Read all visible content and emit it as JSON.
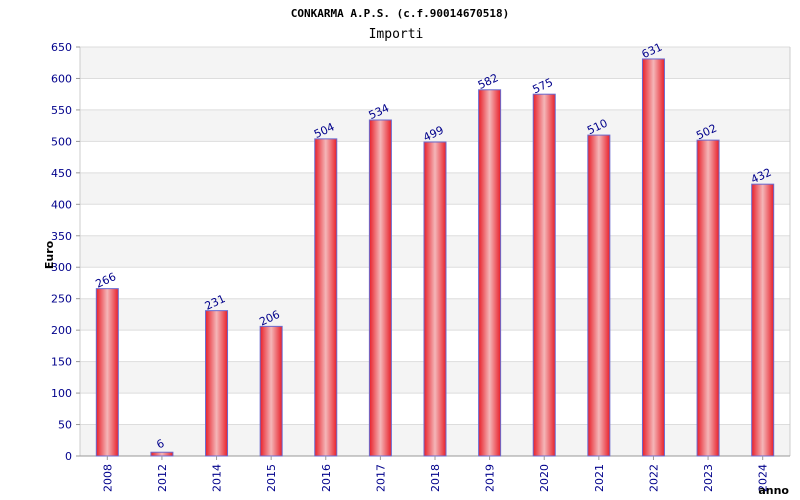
{
  "chart_data": {
    "type": "bar",
    "title": "CONKARMA A.P.S. (c.f.90014670518)",
    "subtitle": "Importi",
    "xlabel": "anno",
    "ylabel": "Euro",
    "ylim": [
      0,
      650
    ],
    "y_ticks": [
      0,
      50,
      100,
      150,
      200,
      250,
      300,
      350,
      400,
      450,
      500,
      550,
      600,
      650
    ],
    "categories": [
      "2008",
      "2012",
      "2014",
      "2015",
      "2016",
      "2017",
      "2018",
      "2019",
      "2020",
      "2021",
      "2022",
      "2023",
      "2024"
    ],
    "values": [
      266,
      6,
      231,
      206,
      504,
      534,
      499,
      582,
      575,
      510,
      631,
      502,
      432
    ],
    "bar_color": "#e8202a",
    "bar_highlight": "#f4b6b8",
    "bar_outline": "#6a6acf",
    "grid": true,
    "band_colors": [
      "#f4f4f4",
      "#ffffff"
    ],
    "label_color": "#00008b"
  }
}
